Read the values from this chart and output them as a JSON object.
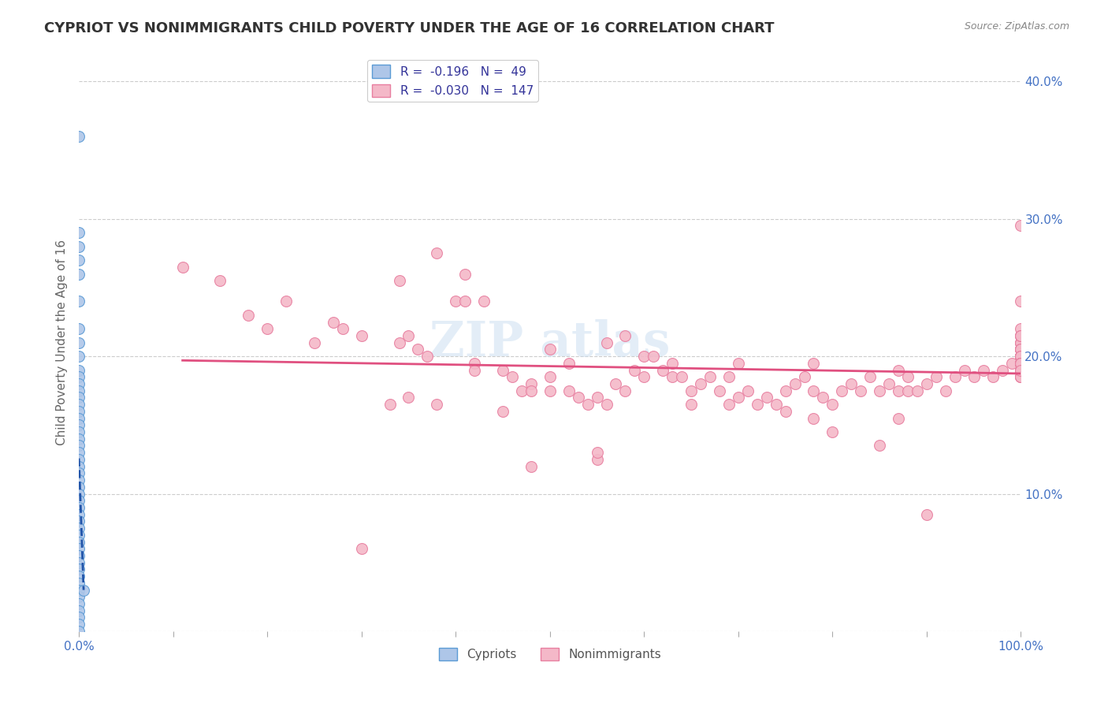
{
  "title": "CYPRIOT VS NONIMMIGRANTS CHILD POVERTY UNDER THE AGE OF 16 CORRELATION CHART",
  "source": "Source: ZipAtlas.com",
  "ylabel": "Child Poverty Under the Age of 16",
  "xlim": [
    0.0,
    1.0
  ],
  "ylim": [
    0.0,
    0.42
  ],
  "xticks": [
    0.0,
    0.1,
    0.2,
    0.3,
    0.4,
    0.5,
    0.6,
    0.7,
    0.8,
    0.9,
    1.0
  ],
  "xticklabels": [
    "0.0%",
    "",
    "",
    "",
    "",
    "",
    "",
    "",
    "",
    "",
    "100.0%"
  ],
  "yticks_right": [
    0.1,
    0.2,
    0.3,
    0.4
  ],
  "yticklabels_right": [
    "10.0%",
    "20.0%",
    "30.0%",
    "40.0%"
  ],
  "background_color": "#ffffff",
  "plot_bg_color": "#ffffff",
  "grid_color": "#cccccc",
  "cypriot_color": "#aec6e8",
  "cypriot_edge_color": "#5b9bd5",
  "nonimmigrant_color": "#f4b8c8",
  "nonimmigrant_edge_color": "#e87fa0",
  "cypriot_line_color": "#2255aa",
  "nonimmigrant_line_color": "#e05080",
  "legend_R_cypriot": "-0.196",
  "legend_N_cypriot": "49",
  "legend_R_nonimmigrant": "-0.030",
  "legend_N_nonimmigrant": "147",
  "cypriot_scatter_x": [
    0.0,
    0.0,
    0.0,
    0.0,
    0.0,
    0.0,
    0.0,
    0.0,
    0.0,
    0.0,
    0.0,
    0.0,
    0.0,
    0.0,
    0.0,
    0.0,
    0.0,
    0.0,
    0.0,
    0.0,
    0.0,
    0.0,
    0.0,
    0.0,
    0.0,
    0.0,
    0.0,
    0.0,
    0.0,
    0.0,
    0.0,
    0.0,
    0.0,
    0.0,
    0.0,
    0.0,
    0.0,
    0.0,
    0.0,
    0.0,
    0.0,
    0.0,
    0.0,
    0.0,
    0.0,
    0.0,
    0.0,
    0.0,
    0.005
  ],
  "cypriot_scatter_y": [
    0.36,
    0.29,
    0.28,
    0.27,
    0.26,
    0.24,
    0.22,
    0.21,
    0.2,
    0.19,
    0.185,
    0.18,
    0.175,
    0.17,
    0.165,
    0.16,
    0.155,
    0.15,
    0.145,
    0.14,
    0.135,
    0.13,
    0.125,
    0.12,
    0.115,
    0.11,
    0.105,
    0.1,
    0.095,
    0.09,
    0.085,
    0.08,
    0.075,
    0.07,
    0.065,
    0.06,
    0.055,
    0.05,
    0.045,
    0.04,
    0.035,
    0.03,
    0.025,
    0.02,
    0.015,
    0.01,
    0.005,
    0.0,
    0.03
  ],
  "nonimmigrant_scatter_x": [
    0.11,
    0.15,
    0.18,
    0.2,
    0.22,
    0.25,
    0.27,
    0.28,
    0.3,
    0.33,
    0.34,
    0.34,
    0.35,
    0.36,
    0.37,
    0.38,
    0.38,
    0.4,
    0.41,
    0.41,
    0.42,
    0.43,
    0.45,
    0.46,
    0.47,
    0.48,
    0.48,
    0.5,
    0.5,
    0.52,
    0.52,
    0.53,
    0.54,
    0.55,
    0.55,
    0.56,
    0.56,
    0.57,
    0.58,
    0.58,
    0.59,
    0.6,
    0.6,
    0.61,
    0.62,
    0.63,
    0.63,
    0.64,
    0.65,
    0.65,
    0.66,
    0.67,
    0.68,
    0.69,
    0.7,
    0.7,
    0.71,
    0.72,
    0.73,
    0.74,
    0.75,
    0.75,
    0.76,
    0.77,
    0.78,
    0.78,
    0.79,
    0.8,
    0.8,
    0.81,
    0.82,
    0.83,
    0.84,
    0.85,
    0.85,
    0.86,
    0.87,
    0.87,
    0.88,
    0.88,
    0.89,
    0.9,
    0.9,
    0.91,
    0.92,
    0.93,
    0.94,
    0.95,
    0.96,
    0.97,
    0.98,
    0.99,
    1.0,
    1.0,
    1.0,
    1.0,
    1.0,
    1.0,
    1.0,
    1.0,
    1.0,
    1.0,
    1.0,
    1.0,
    1.0,
    1.0,
    1.0,
    1.0,
    1.0,
    1.0,
    1.0,
    1.0,
    1.0,
    1.0,
    1.0,
    1.0,
    1.0,
    1.0,
    1.0,
    1.0,
    1.0,
    1.0,
    1.0,
    1.0,
    1.0,
    1.0,
    1.0,
    1.0,
    1.0,
    1.0,
    1.0,
    1.0,
    1.0,
    1.0,
    1.0,
    1.0,
    1.0,
    0.5,
    0.55,
    0.45,
    0.42,
    0.35,
    0.48,
    0.69,
    0.78,
    0.87,
    0.3
  ],
  "nonimmigrant_scatter_y": [
    0.265,
    0.255,
    0.23,
    0.22,
    0.24,
    0.21,
    0.225,
    0.22,
    0.215,
    0.165,
    0.21,
    0.255,
    0.215,
    0.205,
    0.2,
    0.275,
    0.165,
    0.24,
    0.26,
    0.24,
    0.195,
    0.24,
    0.19,
    0.185,
    0.175,
    0.18,
    0.12,
    0.205,
    0.175,
    0.175,
    0.195,
    0.17,
    0.165,
    0.17,
    0.125,
    0.165,
    0.21,
    0.18,
    0.175,
    0.215,
    0.19,
    0.185,
    0.2,
    0.2,
    0.19,
    0.185,
    0.195,
    0.185,
    0.175,
    0.165,
    0.18,
    0.185,
    0.175,
    0.165,
    0.17,
    0.195,
    0.175,
    0.165,
    0.17,
    0.165,
    0.175,
    0.16,
    0.18,
    0.185,
    0.175,
    0.155,
    0.17,
    0.165,
    0.145,
    0.175,
    0.18,
    0.175,
    0.185,
    0.175,
    0.135,
    0.18,
    0.175,
    0.155,
    0.185,
    0.175,
    0.175,
    0.18,
    0.085,
    0.185,
    0.175,
    0.185,
    0.19,
    0.185,
    0.19,
    0.185,
    0.19,
    0.195,
    0.2,
    0.195,
    0.19,
    0.195,
    0.2,
    0.19,
    0.2,
    0.195,
    0.19,
    0.24,
    0.295,
    0.205,
    0.21,
    0.215,
    0.2,
    0.195,
    0.21,
    0.205,
    0.215,
    0.22,
    0.205,
    0.2,
    0.21,
    0.205,
    0.215,
    0.2,
    0.215,
    0.205,
    0.195,
    0.2,
    0.185,
    0.195,
    0.2,
    0.195,
    0.19,
    0.185,
    0.195,
    0.19,
    0.195,
    0.185,
    0.195,
    0.19,
    0.195,
    0.185,
    0.19,
    0.185,
    0.13,
    0.16,
    0.19,
    0.17,
    0.175,
    0.185,
    0.195,
    0.19,
    0.06
  ],
  "watermark_text": "ZIP atlas",
  "marker_size": 100,
  "title_fontsize": 13,
  "axis_label_fontsize": 11,
  "tick_fontsize": 11,
  "legend_fontsize": 11
}
